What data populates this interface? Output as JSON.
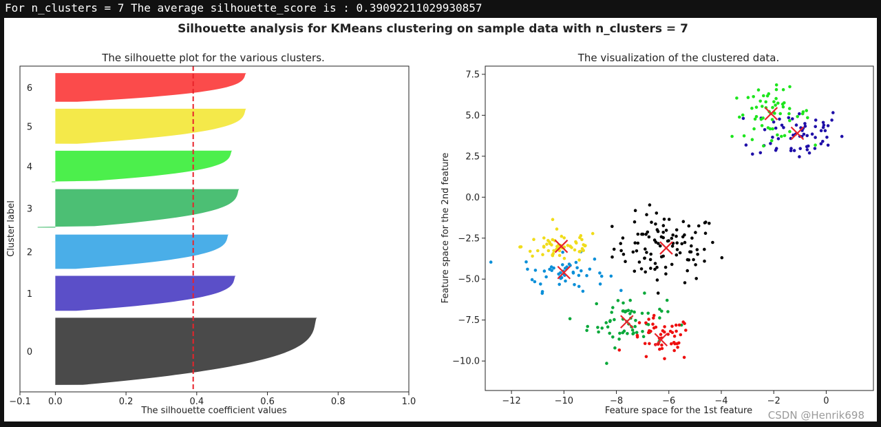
{
  "console_output": "For n_clusters = 7 The average silhouette_score is : 0.39092211029930857",
  "watermark": "CSDN @Henrik698",
  "suptitle": "Silhouette analysis for KMeans clustering on sample data with n_clusters = 7",
  "colors": {
    "cluster_0": "#4a4a4a",
    "cluster_1": "#5b4fc8",
    "cluster_2": "#4aaee8",
    "cluster_3": "#4cbf74",
    "cluster_4": "#4cef4c",
    "cluster_5": "#f4e94a",
    "cluster_6": "#fb4b4b",
    "avg_line": "#e8232b",
    "center_marker": "#e8232b"
  },
  "chart_data": [
    {
      "type": "area",
      "title": "The silhouette plot for the various clusters.",
      "xlabel": "The silhouette coefficient values",
      "ylabel": "Cluster label",
      "xlim": [
        -0.1,
        1.0
      ],
      "xticks": [
        "−0.1",
        "0.0",
        "0.2",
        "0.4",
        "0.6",
        "0.8",
        "1.0"
      ],
      "xtick_values": [
        -0.1,
        0.0,
        0.2,
        0.4,
        0.6,
        0.8,
        1.0
      ],
      "average_silhouette_line": 0.39,
      "grid": false,
      "clusters": [
        {
          "label": "0",
          "max": 0.74,
          "min": 0.0,
          "size": 96
        },
        {
          "label": "1",
          "max": 0.51,
          "min": 0.0,
          "size": 50
        },
        {
          "label": "2",
          "max": 0.49,
          "min": 0.0,
          "size": 49
        },
        {
          "label": "3",
          "max": 0.52,
          "min": -0.05,
          "size": 55
        },
        {
          "label": "4",
          "max": 0.5,
          "min": -0.01,
          "size": 45
        },
        {
          "label": "5",
          "max": 0.54,
          "min": 0.0,
          "size": 50
        },
        {
          "label": "6",
          "max": 0.54,
          "min": 0.0,
          "size": 41
        }
      ]
    },
    {
      "type": "scatter",
      "title": "The visualization of the clustered data.",
      "xlabel": "Feature space for the 1st feature",
      "ylabel": "Feature space for the 2nd feature",
      "xlim": [
        -13.0,
        1.8
      ],
      "ylim": [
        -11.8,
        8.0
      ],
      "xticks": [
        "−12",
        "−10",
        "−8",
        "−6",
        "−4",
        "−2",
        "0"
      ],
      "xtick_values": [
        -12,
        -10,
        -8,
        -6,
        -4,
        -2,
        0
      ],
      "yticks": [
        "−10.0",
        "−7.5",
        "−5.0",
        "−2.5",
        "0.0",
        "2.5",
        "5.0",
        "7.5"
      ],
      "ytick_values": [
        -10.0,
        -7.5,
        -5.0,
        -2.5,
        0.0,
        2.5,
        5.0,
        7.5
      ],
      "grid": false,
      "series": [
        {
          "cluster": 0,
          "color": "#000000",
          "center": [
            -6.1,
            -3.1
          ],
          "spread": [
            1.0,
            1.05
          ],
          "count": 100
        },
        {
          "cluster": 1,
          "color": "#1f0fa8",
          "center": [
            -1.1,
            3.9
          ],
          "spread": [
            0.9,
            0.85
          ],
          "count": 60
        },
        {
          "cluster": 2,
          "color": "#0a8fd8",
          "center": [
            -10.0,
            -4.6
          ],
          "spread": [
            0.8,
            0.55
          ],
          "count": 50
        },
        {
          "cluster": 3,
          "color": "#0aa83a",
          "center": [
            -7.6,
            -7.6
          ],
          "spread": [
            0.75,
            0.75
          ],
          "count": 60
        },
        {
          "cluster": 4,
          "color": "#1ee51e",
          "center": [
            -2.1,
            5.1
          ],
          "spread": [
            0.75,
            0.75
          ],
          "count": 60
        },
        {
          "cluster": 5,
          "color": "#f0dc1a",
          "center": [
            -10.1,
            -3.0
          ],
          "spread": [
            0.75,
            0.5
          ],
          "count": 55
        },
        {
          "cluster": 6,
          "color": "#ee1010",
          "center": [
            -6.3,
            -8.7
          ],
          "spread": [
            0.6,
            0.7
          ],
          "count": 50
        }
      ]
    }
  ]
}
